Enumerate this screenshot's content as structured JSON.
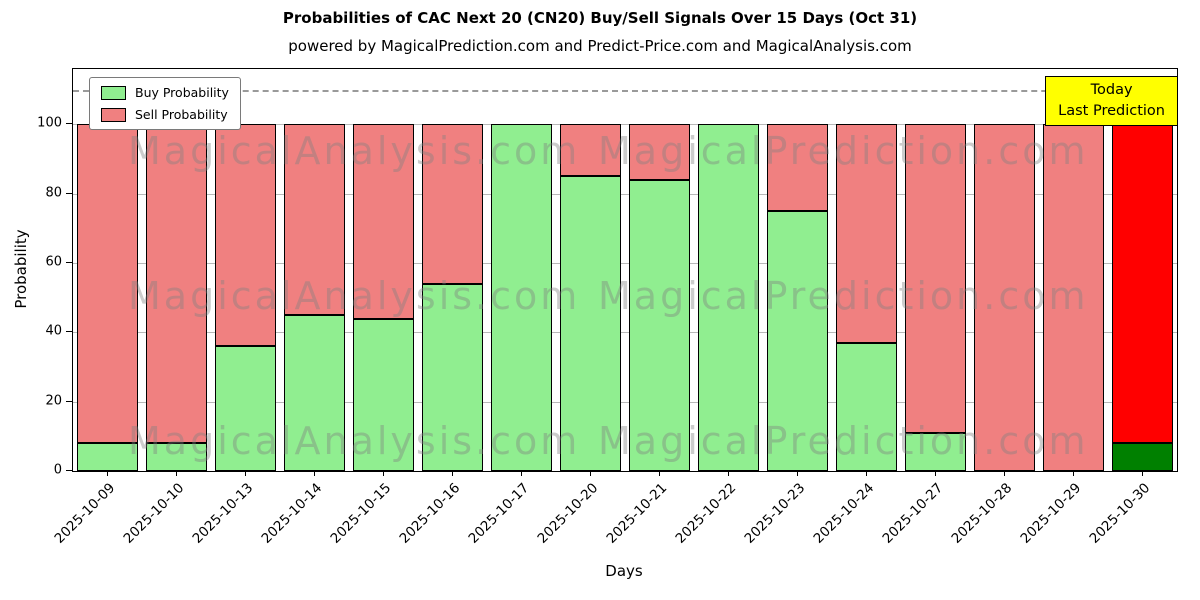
{
  "title": "Probabilities of CAC Next 20 (CN20) Buy/Sell Signals Over 15 Days (Oct 31)",
  "subtitle": "powered by MagicalPrediction.com and Predict-Price.com and MagicalAnalysis.com",
  "today_box": {
    "line1": "Today",
    "line2": "Last Prediction"
  },
  "watermark": {
    "left_text": "MagicalAnalysis.com",
    "right_text": "MagicalPrediction.com"
  },
  "colors": {
    "buy_normal": "#90EE90",
    "sell_normal": "#F08080",
    "buy_today": "#008000",
    "sell_today": "#FF0000",
    "today_box_bg": "#FFFF00",
    "grid": "#B8B8B8",
    "dashed_line": "#9A9A9A",
    "bar_edge": "#000000"
  },
  "chart_data": {
    "type": "bar",
    "stacked": true,
    "title": "Probabilities of CAC Next 20 (CN20) Buy/Sell Signals Over 15 Days (Oct 31)",
    "xlabel": "Days",
    "ylabel": "Probability",
    "ylim": [
      0,
      116
    ],
    "yticks": [
      0,
      20,
      40,
      60,
      80,
      100
    ],
    "dashed_line_y": 110,
    "grid": true,
    "legend_position": "upper-left",
    "today_index": 15,
    "categories": [
      "2025-10-09",
      "2025-10-10",
      "2025-10-13",
      "2025-10-14",
      "2025-10-15",
      "2025-10-16",
      "2025-10-17",
      "2025-10-20",
      "2025-10-21",
      "2025-10-22",
      "2025-10-23",
      "2025-10-24",
      "2025-10-27",
      "2025-10-28",
      "2025-10-29",
      "2025-10-30"
    ],
    "series": [
      {
        "name": "Buy Probability",
        "values": [
          8,
          8,
          36,
          45,
          44,
          54,
          100,
          85,
          84,
          100,
          75,
          37,
          11,
          0,
          0,
          8
        ]
      },
      {
        "name": "Sell Probability",
        "values": [
          92,
          92,
          64,
          55,
          56,
          46,
          0,
          15,
          16,
          0,
          25,
          63,
          89,
          100,
          100,
          92
        ]
      }
    ]
  }
}
